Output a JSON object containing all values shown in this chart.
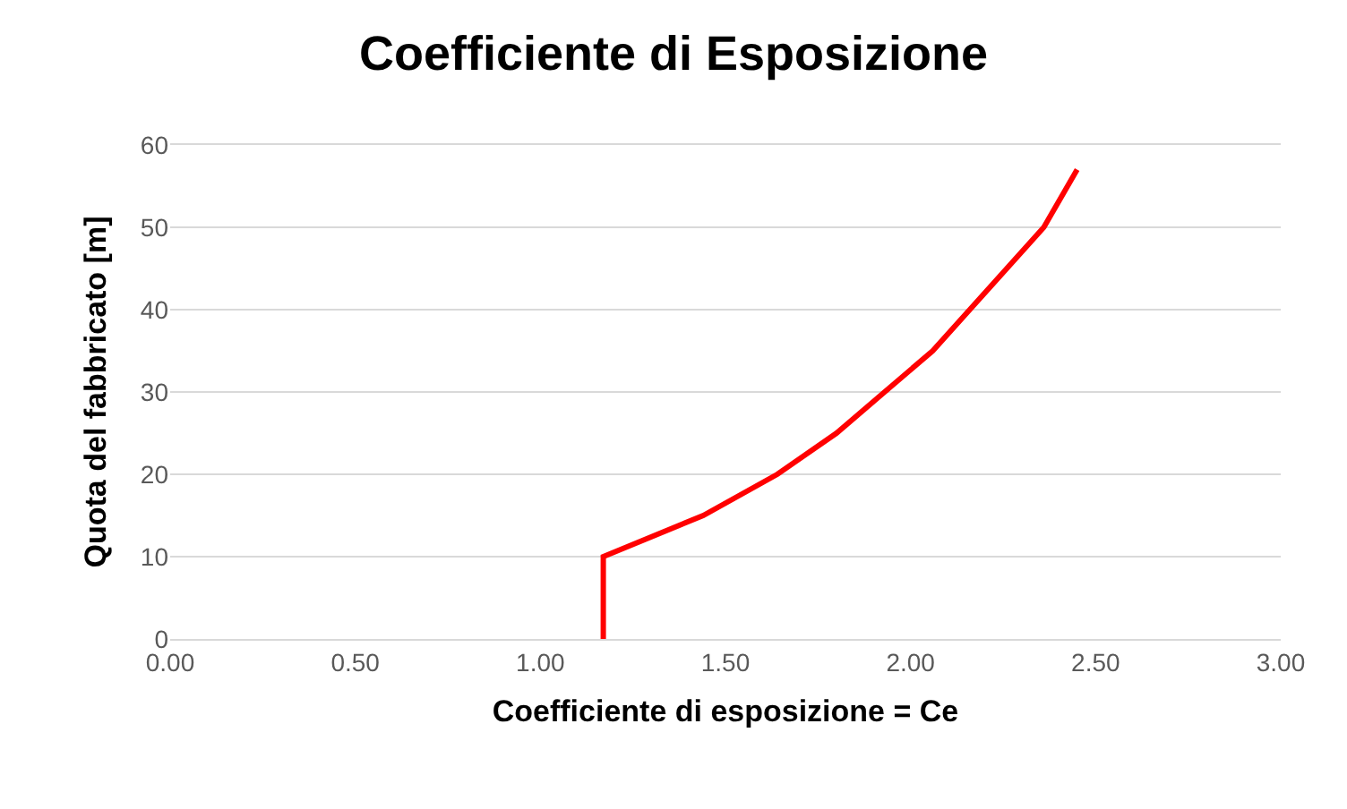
{
  "chart_data": {
    "type": "line",
    "title": "Coefficiente di Esposizione",
    "xlabel": "Coefficiente di esposizione = Ce",
    "ylabel": "Quota del fabbricato [m]",
    "series": [
      {
        "color": "#ff0000",
        "x": [
          1.17,
          1.17,
          1.44,
          1.64,
          1.8,
          1.93,
          2.06,
          2.16,
          2.26,
          2.36,
          2.45
        ],
        "values": [
          0,
          10,
          15,
          20,
          25,
          30,
          35,
          40,
          45,
          50,
          57
        ]
      }
    ],
    "xlim": [
      0,
      3
    ],
    "xticks": [
      {
        "value": 0,
        "label": "0.00"
      },
      {
        "value": 0.5,
        "label": "0.50"
      },
      {
        "value": 1,
        "label": "1.00"
      },
      {
        "value": 1.5,
        "label": "1.50"
      },
      {
        "value": 2,
        "label": "2.00"
      },
      {
        "value": 2.5,
        "label": "2.50"
      },
      {
        "value": 3,
        "label": "3.00"
      }
    ],
    "ylim": [
      0,
      60
    ],
    "yticks": [
      0,
      10,
      20,
      30,
      40,
      50,
      60
    ],
    "grid": "y",
    "marker": "none",
    "line_style": "solid"
  }
}
